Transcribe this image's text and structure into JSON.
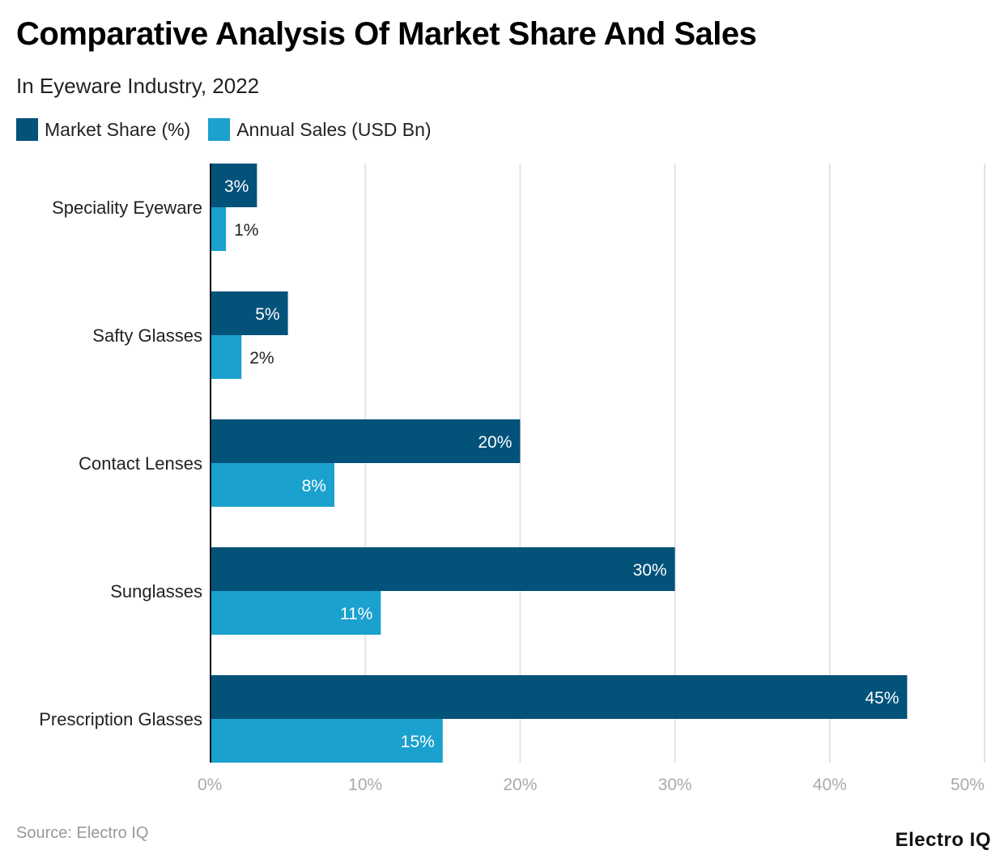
{
  "header": {
    "title": "Comparative Analysis Of Market Share And Sales",
    "subtitle": "In Eyeware Industry, 2022"
  },
  "footer": {
    "source": "Source: Electro IQ",
    "logo": "Electro IQ"
  },
  "chart_data": {
    "type": "bar",
    "orientation": "horizontal",
    "categories": [
      "Speciality Eyeware",
      "Safty Glasses",
      "Contact Lenses",
      "Sunglasses",
      "Prescription Glasses"
    ],
    "series": [
      {
        "name": "Market Share (%)",
        "color": "#03527a",
        "values": [
          3,
          5,
          20,
          30,
          45
        ],
        "labels": [
          "3%",
          "5%",
          "20%",
          "30%",
          "45%"
        ]
      },
      {
        "name": "Annual Sales (USD Bn)",
        "color": "#1aa1ce",
        "values": [
          1,
          2,
          8,
          11,
          15
        ],
        "labels": [
          "1%",
          "2%",
          "8%",
          "11%",
          "15%"
        ]
      }
    ],
    "xlim": [
      0,
      50
    ],
    "xticks": [
      0,
      10,
      20,
      30,
      40,
      50
    ],
    "xtick_labels": [
      "0%",
      "10%",
      "20%",
      "30%",
      "40%",
      "50%"
    ],
    "grid": true,
    "legend_position": "top-left"
  }
}
